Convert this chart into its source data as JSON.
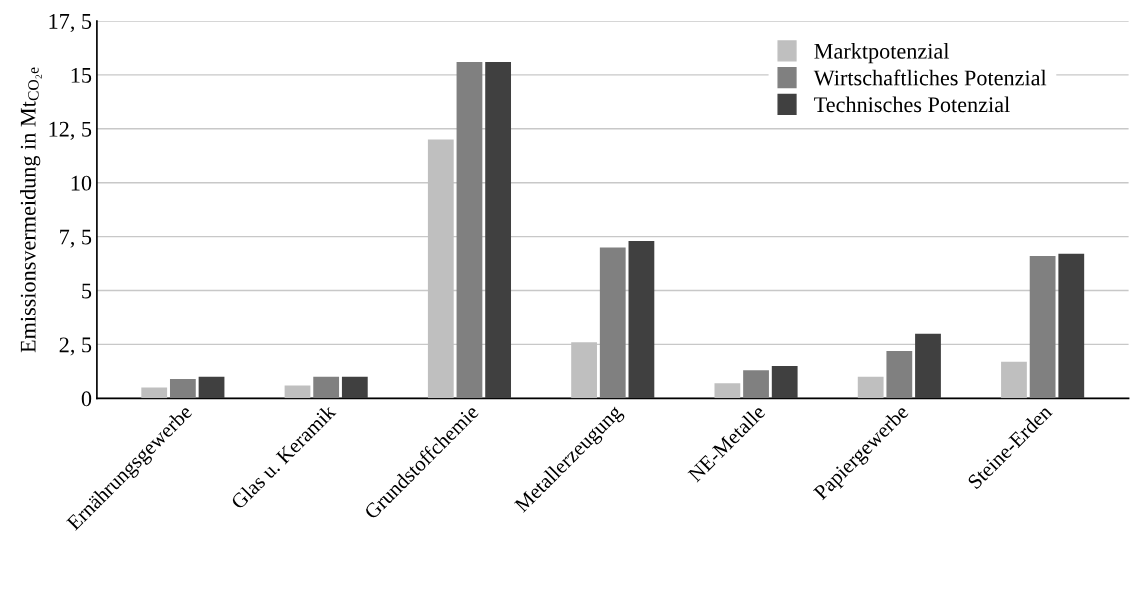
{
  "chart_data": {
    "type": "bar",
    "ylabel": "Emissionsvermeidung in Mt$_{CO₂e}$",
    "categories": [
      "Ernährungsgewerbe",
      "Glas u. Keramik",
      "Grundstoffchemie",
      "Metallerzeugung",
      "NE-Metalle",
      "Papiergewerbe",
      "Steine-Erden"
    ],
    "series": [
      {
        "name": "Marktpotenzial",
        "color": "#bfbfbf",
        "values": [
          0.5,
          0.6,
          12.0,
          2.6,
          0.7,
          1.0,
          1.7
        ]
      },
      {
        "name": "Wirtschaftliches Potenzial",
        "color": "#808080",
        "values": [
          0.9,
          1.0,
          15.6,
          7.0,
          1.3,
          2.2,
          6.6
        ]
      },
      {
        "name": "Technisches Potenzial",
        "color": "#404040",
        "values": [
          1.0,
          1.0,
          15.6,
          7.3,
          1.5,
          3.0,
          6.7
        ]
      }
    ],
    "ylim": [
      0,
      17.5
    ],
    "yticks": [
      0,
      {
        "value": 2.5,
        "label": "2, 5"
      },
      5,
      {
        "value": 7.5,
        "label": "7, 5"
      },
      10,
      {
        "value": 12.5,
        "label": "12, 5"
      },
      15,
      {
        "value": 17.5,
        "label": "17, 5"
      }
    ],
    "grid": "y",
    "legend": "top right"
  }
}
